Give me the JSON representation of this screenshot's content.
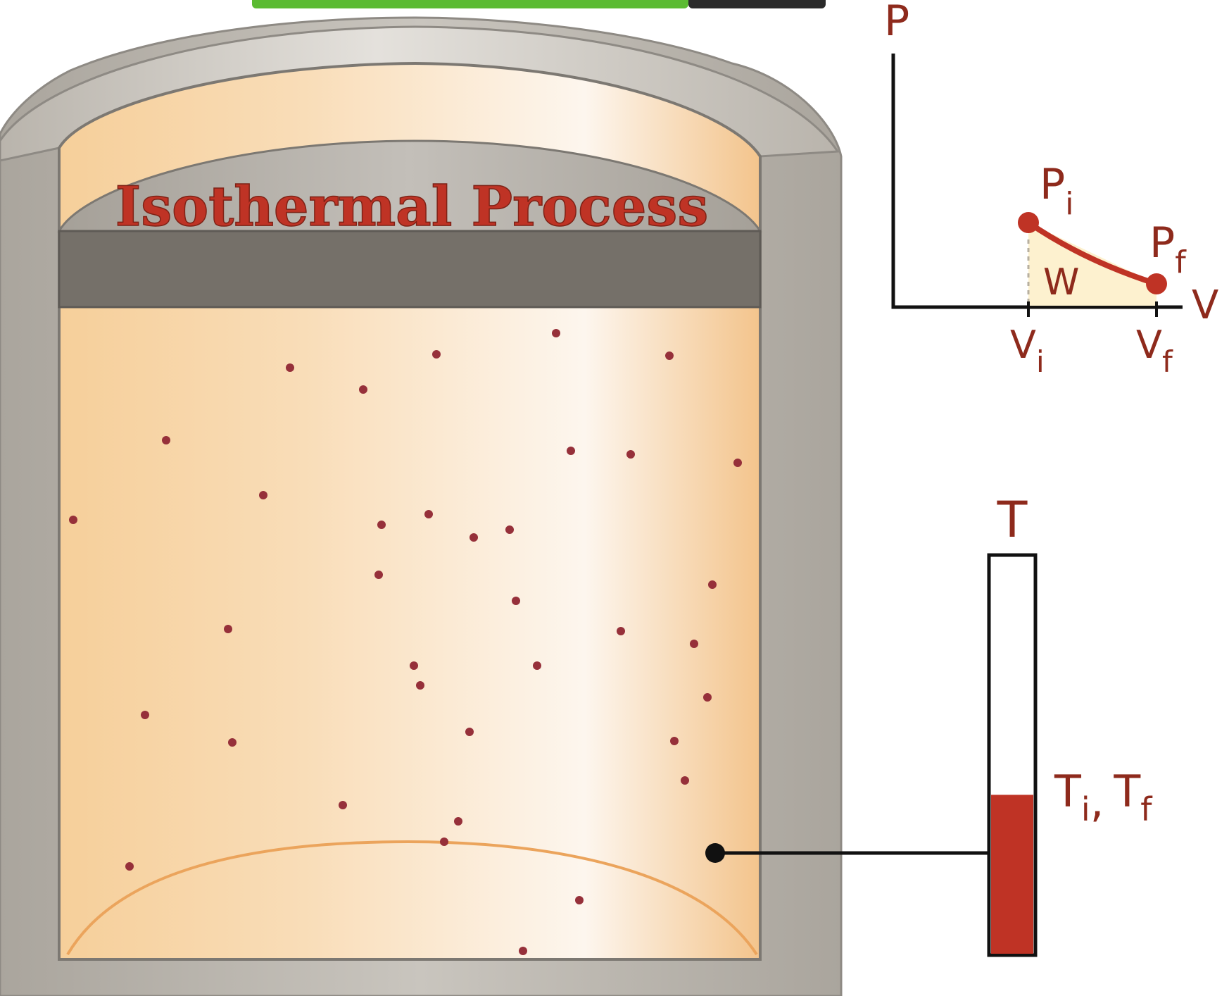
{
  "diagram": {
    "title": "Isothermal Process",
    "pv_graph": {
      "p_axis_label": "P",
      "v_axis_label": "V",
      "initial_state": {
        "p_label": "P",
        "p_sub": "i",
        "v_label": "V",
        "v_sub": "i"
      },
      "final_state": {
        "p_label": "P",
        "p_sub": "f",
        "v_label": "V",
        "v_sub": "f"
      },
      "work_label": "W"
    },
    "thermometer": {
      "label": "T",
      "reading_label": "T",
      "reading_sub_i": "i",
      "reading_separator": ",",
      "reading_sub_f": "f",
      "fill_fraction": 0.4
    },
    "colors": {
      "accent_red": "#bf3325",
      "label_brown": "#8e2a1c",
      "gas": "#f7d7aa",
      "wall_gray": "#b3aea6",
      "piston_dark": "#757069",
      "work_area": "#fdf1cf",
      "molecule": "#96303a",
      "banner_green": "#5bbb32"
    }
  }
}
